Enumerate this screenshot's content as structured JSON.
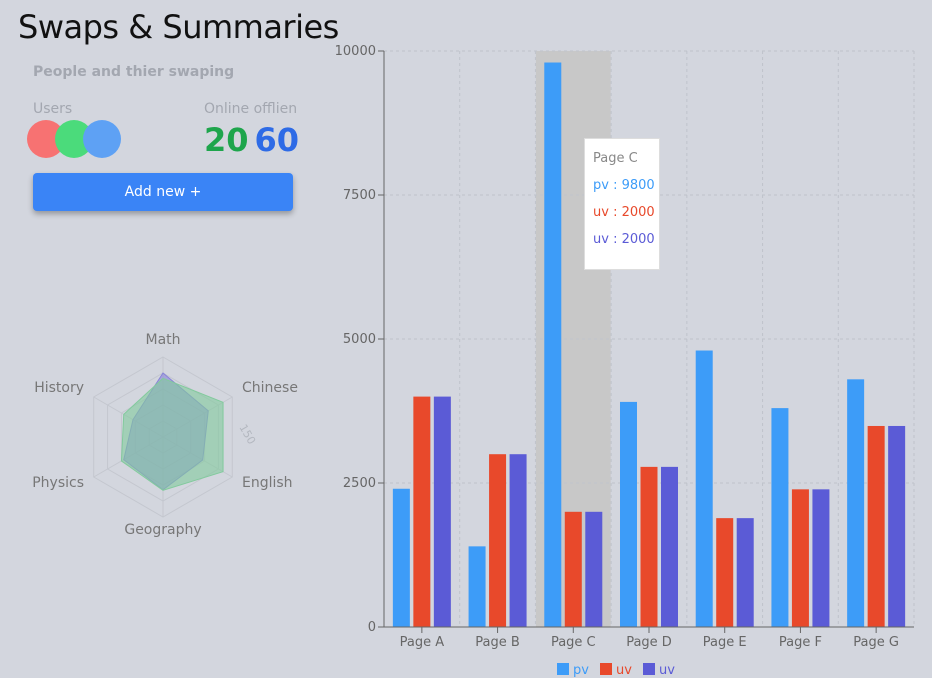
{
  "page": {
    "title": "Swaps & Summaries"
  },
  "left_panel": {
    "subtitle": "People and thier swaping",
    "users_label": "Users",
    "online_label": "Online offlien",
    "online_value": "20",
    "offline_value": "60",
    "add_button_label": "Add new +",
    "colors": {
      "avatar_1": "#f77272",
      "avatar_2": "#4bdb7b",
      "avatar_3": "#5ea1f4",
      "online": "#1ea54c",
      "offline": "#2e6be6",
      "button": "#3a84f6"
    }
  },
  "radar": {
    "axes": [
      "Math",
      "Chinese",
      "English",
      "Geography",
      "Physics",
      "History"
    ],
    "series": [
      {
        "color": "#8884d8",
        "values": [
          120,
          98,
          86,
          99,
          85,
          65
        ]
      },
      {
        "color": "#82ca9d",
        "values": [
          110,
          130,
          130,
          100,
          90,
          85
        ]
      }
    ],
    "max": 150,
    "tick_label": "150"
  },
  "chart_data": {
    "type": "bar",
    "categories": [
      "Page A",
      "Page B",
      "Page C",
      "Page D",
      "Page E",
      "Page F",
      "Page G"
    ],
    "series": [
      {
        "name": "pv",
        "color": "#3d9cf8",
        "values": [
          2400,
          1400,
          9800,
          3908,
          4800,
          3800,
          4300
        ]
      },
      {
        "name": "uv",
        "color": "#e8492b",
        "values": [
          4000,
          3000,
          2000,
          2780,
          1890,
          2390,
          3490
        ]
      },
      {
        "name": "uv",
        "color": "#5b5bd6",
        "values": [
          4000,
          3000,
          2000,
          2780,
          1890,
          2390,
          3490
        ]
      }
    ],
    "y_ticks": [
      0,
      2500,
      5000,
      7500,
      10000
    ],
    "ylim": [
      0,
      10000
    ],
    "grid": true,
    "legend": "bottom-center",
    "highlight_category": "Page C"
  },
  "tooltip": {
    "title": "Page C",
    "rows": [
      "pv : 9800",
      "uv : 2000",
      "uv : 2000"
    ],
    "colors": [
      "#3d9cf8",
      "#e8492b",
      "#5b5bd6"
    ]
  }
}
